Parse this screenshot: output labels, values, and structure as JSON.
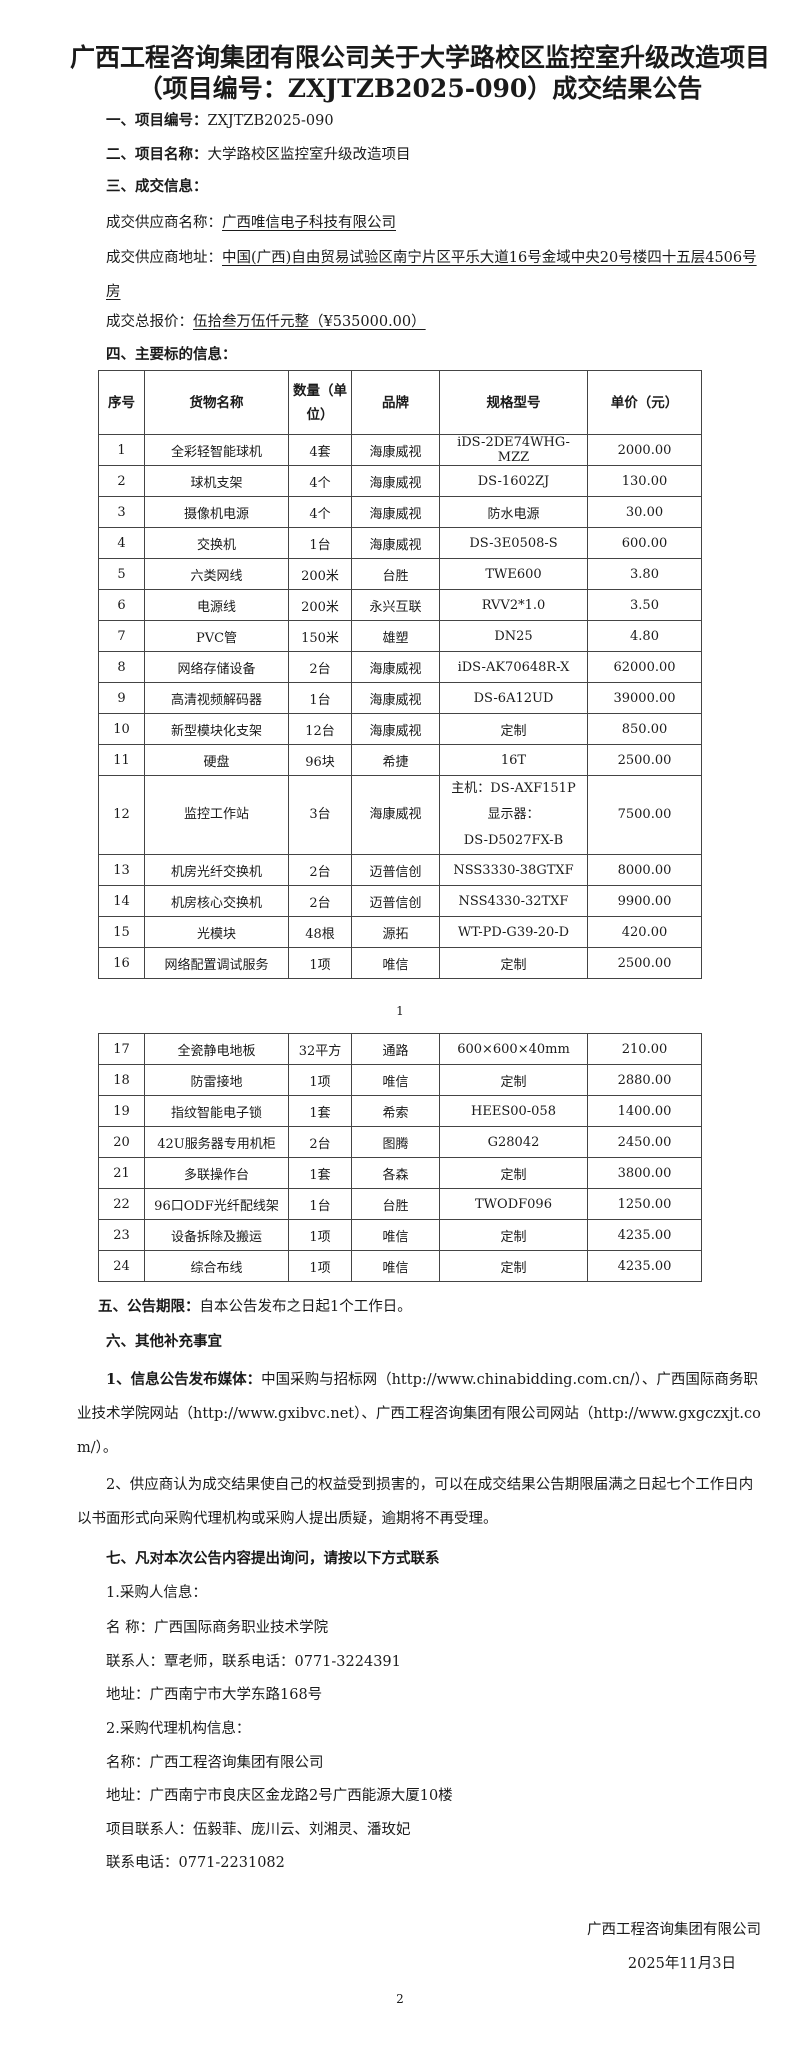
{
  "title": "广西工程咨询集团有限公司关于大学路校区监控室升级改造项目（项目编号：ZXJTZB2025-090）成交结果公告",
  "section1": {
    "label": "一、项目编号：",
    "value": "ZXJTZB2025-090"
  },
  "section2": {
    "label": "二、项目名称：",
    "value": "大学路校区监控室升级改造项目"
  },
  "section3": {
    "label": "三、成交信息：",
    "supplier_name_label": "成交供应商名称：",
    "supplier_name": "广西唯信电子科技有限公司",
    "supplier_address_label": "成交供应商地址：",
    "supplier_address": "中国(广西)自由贸易试验区南宁片区平乐大道16号金域中央20号楼四十五层4506号房",
    "total_price_label": "成交总报价：",
    "total_price": "伍拾叁万伍仟元整（¥535000.00）"
  },
  "section4": {
    "label": "四、主要标的信息："
  },
  "table": {
    "headers": [
      "序号",
      "货物名称",
      "数量（单位）",
      "品牌",
      "规格型号",
      "单价（元）"
    ],
    "rows_page1": [
      [
        "1",
        "全彩轻智能球机",
        "4套",
        "海康威视",
        "iDS-2DE74WHG-MZZ",
        "2000.00"
      ],
      [
        "2",
        "球机支架",
        "4个",
        "海康威视",
        "DS-1602ZJ",
        "130.00"
      ],
      [
        "3",
        "摄像机电源",
        "4个",
        "海康威视",
        "防水电源",
        "30.00"
      ],
      [
        "4",
        "交换机",
        "1台",
        "海康威视",
        "DS-3E0508-S",
        "600.00"
      ],
      [
        "5",
        "六类网线",
        "200米",
        "台胜",
        "TWE600",
        "3.80"
      ],
      [
        "6",
        "电源线",
        "200米",
        "永兴互联",
        "RVV2*1.0",
        "3.50"
      ],
      [
        "7",
        "PVC管",
        "150米",
        "雄塑",
        "DN25",
        "4.80"
      ],
      [
        "8",
        "网络存储设备",
        "2台",
        "海康威视",
        "iDS-AK70648R-X",
        "62000.00"
      ],
      [
        "9",
        "高清视频解码器",
        "1台",
        "海康威视",
        "DS-6A12UD",
        "39000.00"
      ],
      [
        "10",
        "新型模块化支架",
        "12台",
        "海康威视",
        "定制",
        "850.00"
      ],
      [
        "11",
        "硬盘",
        "96块",
        "希捷",
        "16T",
        "2500.00"
      ],
      [
        "12",
        "监控工作站",
        "3台",
        "海康威视",
        "主机：DS-AXF151P\n显示器：\nDS-D5027FX-B",
        "7500.00"
      ],
      [
        "13",
        "机房光纤交换机",
        "2台",
        "迈普信创",
        "NSS3330-38GTXF",
        "8000.00"
      ],
      [
        "14",
        "机房核心交换机",
        "2台",
        "迈普信创",
        "NSS4330-32TXF",
        "9900.00"
      ],
      [
        "15",
        "光模块",
        "48根",
        "源拓",
        "WT-PD-G39-20-D",
        "420.00"
      ],
      [
        "16",
        "网络配置调试服务",
        "1项",
        "唯信",
        "定制",
        "2500.00"
      ]
    ],
    "rows_page2": [
      [
        "17",
        "全瓷静电地板",
        "32平方",
        "通路",
        "600×600×40mm",
        "210.00"
      ],
      [
        "18",
        "防雷接地",
        "1项",
        "唯信",
        "定制",
        "2880.00"
      ],
      [
        "19",
        "指纹智能电子锁",
        "1套",
        "希索",
        "HEES00-058",
        "1400.00"
      ],
      [
        "20",
        "42U服务器专用机柜",
        "2台",
        "图腾",
        "G28042",
        "2450.00"
      ],
      [
        "21",
        "多联操作台",
        "1套",
        "各森",
        "定制",
        "3800.00"
      ],
      [
        "22",
        "96口ODF光纤配线架",
        "1台",
        "台胜",
        "TWODF096",
        "1250.00"
      ],
      [
        "23",
        "设备拆除及搬运",
        "1项",
        "唯信",
        "定制",
        "4235.00"
      ],
      [
        "24",
        "综合布线",
        "1项",
        "唯信",
        "定制",
        "4235.00"
      ]
    ]
  },
  "page_number_1": "1",
  "section5": {
    "label": "五、公告期限：",
    "value": "自本公告发布之日起1个工作日。"
  },
  "section6": {
    "label": "六、其他补充事宜",
    "item1_label": "1、信息公告发布媒体：",
    "item1_text": "中国采购与招标网（http://www.chinabidding.com.cn/）、广西国际商务职业技术学院网站（http://www.gxibvc.net）、广西工程咨询集团有限公司网站（http://www.gxgczxjt.com/）。",
    "item2_text": "2、供应商认为成交结果使自己的权益受到损害的，可以在成交结果公告期限届满之日起七个工作日内以书面形式向采购代理机构或采购人提出质疑，逾期将不再受理。"
  },
  "section7": {
    "label": "七、凡对本次公告内容提出询问，请按以下方式联系",
    "purchaser_heading": "1.采购人信息：",
    "purchaser_name": "名 称：广西国际商务职业技术学院",
    "purchaser_contact": "联系人：覃老师，联系电话：0771-3224391",
    "purchaser_address": "地址：广西南宁市大学东路168号",
    "agency_heading": "2.采购代理机构信息：",
    "agency_name": "名称：广西工程咨询集团有限公司",
    "agency_address": "地址：广西南宁市良庆区金龙路2号广西能源大厦10楼",
    "agency_contacts": "项目联系人：伍毅菲、庞川云、刘湘灵、潘玫妃",
    "agency_phone": "联系电话：0771-2231082"
  },
  "signature": {
    "company": "广西工程咨询集团有限公司",
    "date": "2025年11月3日"
  },
  "page_number_2": "2"
}
